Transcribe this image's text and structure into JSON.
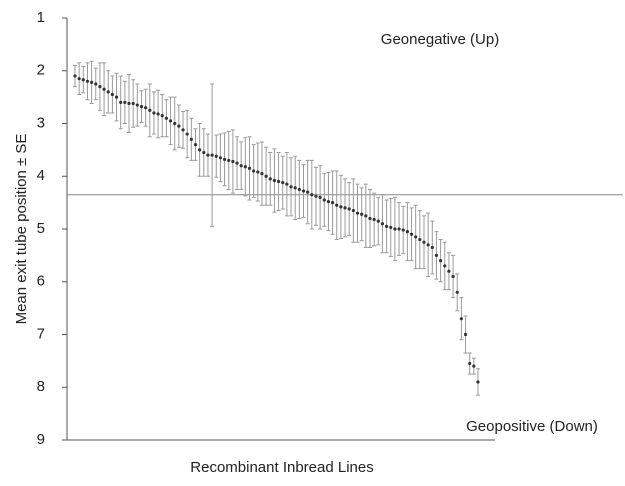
{
  "chart_data": {
    "type": "errorbar",
    "x_label": "Recombinant Inbread Lines",
    "y_label": "Mean exit tube position ± SE",
    "annotations": [
      "Geonegative (Up)",
      "Geopositive (Down)"
    ],
    "ylim": [
      1,
      9
    ],
    "yticks": [
      1,
      2,
      3,
      4,
      5,
      6,
      7,
      8,
      9
    ],
    "y_inverted": true,
    "reference_line": 4.35,
    "point_color": "#333333",
    "error_color": "#9a9a9a",
    "values": [
      2.1,
      2.15,
      2.17,
      2.2,
      2.22,
      2.25,
      2.3,
      2.35,
      2.4,
      2.45,
      2.5,
      2.6,
      2.6,
      2.62,
      2.62,
      2.65,
      2.68,
      2.7,
      2.75,
      2.8,
      2.82,
      2.85,
      2.9,
      2.95,
      3.0,
      3.05,
      3.12,
      3.2,
      3.3,
      3.4,
      3.5,
      3.55,
      3.6,
      3.6,
      3.62,
      3.65,
      3.68,
      3.7,
      3.72,
      3.75,
      3.8,
      3.82,
      3.85,
      3.9,
      3.92,
      3.95,
      4.0,
      4.05,
      4.08,
      4.1,
      4.12,
      4.15,
      4.2,
      4.22,
      4.25,
      4.28,
      4.3,
      4.35,
      4.38,
      4.4,
      4.45,
      4.48,
      4.5,
      4.55,
      4.58,
      4.6,
      4.62,
      4.65,
      4.7,
      4.72,
      4.75,
      4.8,
      4.82,
      4.85,
      4.9,
      4.95,
      4.97,
      5.0,
      5.0,
      5.02,
      5.05,
      5.1,
      5.15,
      5.2,
      5.25,
      5.3,
      5.35,
      5.5,
      5.6,
      5.7,
      5.8,
      5.9,
      6.2,
      6.7,
      7.0,
      7.55,
      7.6,
      7.9
    ],
    "errors": [
      0.2,
      0.3,
      0.25,
      0.35,
      0.4,
      0.3,
      0.45,
      0.5,
      0.4,
      0.35,
      0.45,
      0.5,
      0.4,
      0.55,
      0.45,
      0.4,
      0.3,
      0.35,
      0.5,
      0.4,
      0.45,
      0.4,
      0.35,
      0.45,
      0.5,
      0.4,
      0.35,
      0.45,
      0.4,
      0.3,
      0.5,
      0.45,
      0.4,
      1.35,
      0.4,
      0.45,
      0.5,
      0.55,
      0.6,
      0.5,
      0.45,
      0.55,
      0.6,
      0.5,
      0.55,
      0.6,
      0.55,
      0.5,
      0.6,
      0.55,
      0.5,
      0.6,
      0.55,
      0.6,
      0.55,
      0.5,
      0.6,
      0.65,
      0.55,
      0.6,
      0.5,
      0.55,
      0.6,
      0.65,
      0.6,
      0.55,
      0.5,
      0.6,
      0.55,
      0.5,
      0.6,
      0.55,
      0.5,
      0.45,
      0.55,
      0.5,
      0.55,
      0.6,
      0.5,
      0.45,
      0.55,
      0.5,
      0.6,
      0.55,
      0.5,
      0.6,
      0.5,
      0.45,
      0.4,
      0.45,
      0.35,
      0.4,
      0.35,
      0.4,
      0.35,
      0.2,
      0.15,
      0.25
    ]
  }
}
